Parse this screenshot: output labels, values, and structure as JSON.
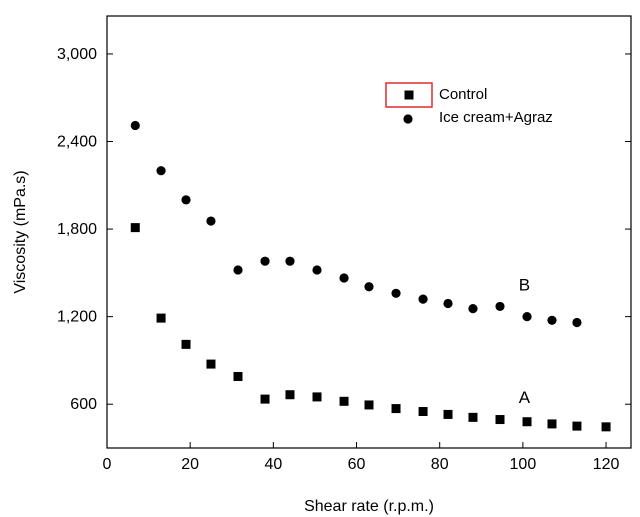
{
  "chart_data": {
    "type": "scatter",
    "title": "",
    "xlabel": "Shear rate (r.p.m.)",
    "ylabel": "Viscosity (mPa.s)",
    "xlim": [
      0,
      126
    ],
    "ylim": [
      300,
      3260
    ],
    "x_ticks": [
      0,
      20,
      40,
      60,
      80,
      100,
      120
    ],
    "x_tick_labels": [
      "0",
      "20",
      "40",
      "60",
      "80",
      "100",
      "120"
    ],
    "y_ticks": [
      600,
      1200,
      1800,
      2400,
      3000
    ],
    "y_tick_labels": [
      "600",
      "1,200",
      "1,800",
      "2,400",
      "3,000"
    ],
    "grid": false,
    "legend_position": "top-right",
    "series": [
      {
        "name": "Control",
        "marker": "square",
        "color": "#000000",
        "points": [
          [
            6.8,
            1810
          ],
          [
            13,
            1190
          ],
          [
            19,
            1010
          ],
          [
            25,
            875
          ],
          [
            31.5,
            790
          ],
          [
            38,
            635
          ],
          [
            44,
            665
          ],
          [
            50.5,
            650
          ],
          [
            57,
            620
          ],
          [
            63,
            595
          ],
          [
            69.5,
            570
          ],
          [
            76,
            550
          ],
          [
            82,
            530
          ],
          [
            88,
            510
          ],
          [
            94.5,
            495
          ],
          [
            101,
            480
          ],
          [
            107,
            465
          ],
          [
            113,
            450
          ],
          [
            120,
            445
          ]
        ]
      },
      {
        "name": "Ice cream+Agraz",
        "marker": "circle",
        "color": "#000000",
        "points": [
          [
            6.8,
            2510
          ],
          [
            13,
            2200
          ],
          [
            19,
            2000
          ],
          [
            25,
            1855
          ],
          [
            31.5,
            1520
          ],
          [
            38,
            1580
          ],
          [
            44,
            1580
          ],
          [
            50.5,
            1520
          ],
          [
            57,
            1465
          ],
          [
            63,
            1405
          ],
          [
            69.5,
            1360
          ],
          [
            76,
            1320
          ],
          [
            82,
            1290
          ],
          [
            88,
            1255
          ],
          [
            94.5,
            1270
          ],
          [
            101,
            1200
          ],
          [
            107,
            1175
          ],
          [
            113,
            1160
          ]
        ]
      }
    ],
    "annotations": [
      {
        "text": "B",
        "x": 99,
        "y": 1380
      },
      {
        "text": "A",
        "x": 99,
        "y": 610
      }
    ]
  }
}
